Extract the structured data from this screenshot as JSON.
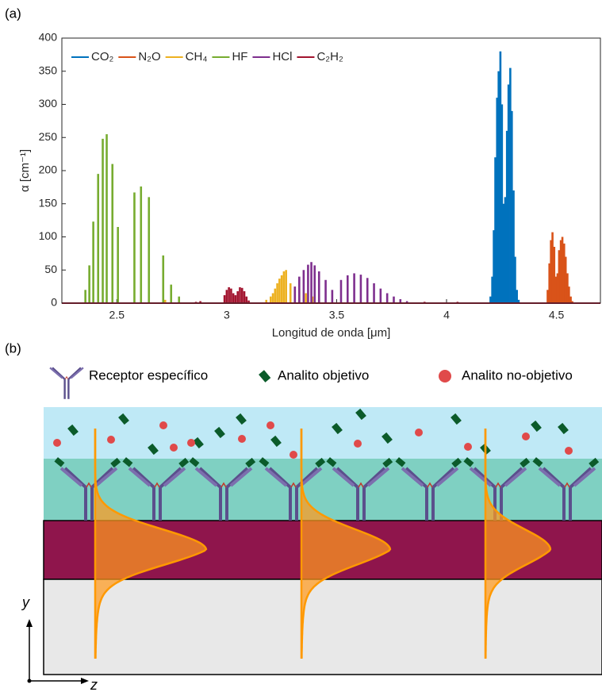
{
  "panels": {
    "a": "(a)",
    "b": "(b)"
  },
  "chart_data": {
    "type": "stem",
    "xlabel": "Longitud de onda [μm]",
    "ylabel": "α [cm⁻¹]",
    "xlim": [
      2.25,
      4.7
    ],
    "xticks": [
      2.5,
      3,
      3.5,
      4,
      4.5
    ],
    "ylim": [
      0,
      400
    ],
    "yticks": [
      0,
      50,
      100,
      150,
      200,
      250,
      300,
      350,
      400
    ],
    "legend": "upper left",
    "series": [
      {
        "name": "CO₂",
        "color": "#0072bd",
        "x": [
          4.2,
          4.208,
          4.215,
          4.222,
          4.23,
          4.237,
          4.245,
          4.252,
          4.26,
          4.267,
          4.275,
          4.282,
          4.29,
          4.297,
          4.305,
          4.312,
          4.32,
          4.328
        ],
        "values": [
          10,
          40,
          110,
          220,
          310,
          350,
          380,
          300,
          150,
          160,
          260,
          330,
          355,
          290,
          170,
          70,
          20,
          5
        ]
      },
      {
        "name": "N₂O",
        "color": "#d95319",
        "x": [
          4.46,
          4.468,
          4.475,
          4.482,
          4.49,
          4.497,
          4.505,
          4.512,
          4.52,
          4.527,
          4.535,
          4.542,
          4.55,
          4.557,
          4.565,
          4.572
        ],
        "values": [
          20,
          60,
          95,
          107,
          85,
          40,
          45,
          80,
          95,
          100,
          90,
          70,
          45,
          25,
          10,
          3
        ]
      },
      {
        "name": "CH₄",
        "color": "#edb120",
        "x": [
          2.72,
          3.18,
          3.2,
          3.21,
          3.22,
          3.23,
          3.24,
          3.25,
          3.26,
          3.27,
          3.29,
          3.31,
          3.33,
          3.36,
          3.39,
          3.42
        ],
        "values": [
          5,
          5,
          10,
          15,
          22,
          30,
          37,
          42,
          48,
          50,
          30,
          25,
          20,
          15,
          10,
          5
        ]
      },
      {
        "name": "HF",
        "color": "#77ac30",
        "x": [
          2.357,
          2.375,
          2.393,
          2.415,
          2.436,
          2.454,
          2.48,
          2.505,
          2.58,
          2.61,
          2.646,
          2.711,
          2.747,
          2.783
        ],
        "values": [
          20,
          57,
          123,
          195,
          248,
          255,
          210,
          115,
          167,
          176,
          160,
          72,
          28,
          10
        ]
      },
      {
        "name": "HCl",
        "color": "#7e2f8e",
        "x": [
          3.31,
          3.33,
          3.35,
          3.37,
          3.385,
          3.4,
          3.42,
          3.45,
          3.48,
          3.52,
          3.55,
          3.58,
          3.61,
          3.64,
          3.67,
          3.7,
          3.73,
          3.76,
          3.79,
          3.82
        ],
        "values": [
          25,
          40,
          50,
          58,
          62,
          57,
          48,
          35,
          20,
          35,
          42,
          45,
          43,
          38,
          30,
          22,
          15,
          10,
          6,
          3
        ]
      },
      {
        "name": "C₂H₂",
        "color": "#a2142f",
        "x": [
          2.86,
          2.88,
          2.99,
          3.0,
          3.01,
          3.02,
          3.03,
          3.04,
          3.05,
          3.06,
          3.07,
          3.08,
          3.09,
          3.1,
          3.9,
          4.05
        ],
        "values": [
          2,
          3,
          12,
          20,
          24,
          22,
          15,
          12,
          18,
          24,
          23,
          18,
          10,
          4,
          2,
          2
        ]
      }
    ]
  },
  "diagram": {
    "legend": [
      "Receptor específico",
      "Analito objetivo",
      "Analito no-objetivo"
    ],
    "axes": {
      "y": "y",
      "z": "z"
    }
  }
}
